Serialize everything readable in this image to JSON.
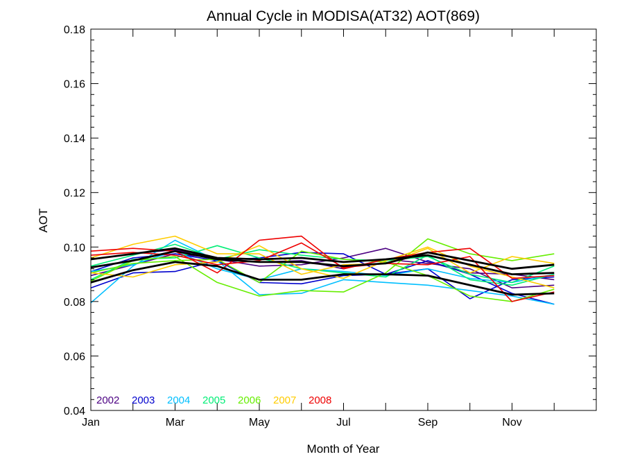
{
  "chart_data": {
    "type": "line",
    "title": "Annual Cycle in MODISA(AT32) AOT(869)",
    "xlabel": "Month of Year",
    "ylabel": "AOT",
    "xlim": [
      1,
      13
    ],
    "ylim": [
      0.04,
      0.18
    ],
    "x_ticks": [
      {
        "value": 1,
        "label": "Jan"
      },
      {
        "value": 3,
        "label": "Mar"
      },
      {
        "value": 5,
        "label": "May"
      },
      {
        "value": 7,
        "label": "Jul"
      },
      {
        "value": 9,
        "label": "Sep"
      },
      {
        "value": 11,
        "label": "Nov"
      }
    ],
    "y_ticks": [
      {
        "value": 0.04,
        "label": "0.04"
      },
      {
        "value": 0.06,
        "label": "0.06"
      },
      {
        "value": 0.08,
        "label": "0.08"
      },
      {
        "value": 0.1,
        "label": "0.10"
      },
      {
        "value": 0.12,
        "label": "0.12"
      },
      {
        "value": 0.14,
        "label": "0.14"
      },
      {
        "value": 0.16,
        "label": "0.16"
      },
      {
        "value": 0.18,
        "label": "0.18"
      }
    ],
    "grid": false,
    "legend_position": "bottom-left",
    "series": [
      {
        "name": "2002",
        "color": "#4b0082",
        "lines": [
          [
            0.0955,
            0.0975,
            0.099,
            0.0955,
            0.093,
            0.0935,
            0.096,
            0.0995,
            0.0945,
            0.0905,
            0.09,
            0.088
          ],
          [
            0.0895,
            0.0935,
            0.0975,
            0.096,
            0.0945,
            0.095,
            0.092,
            0.0955,
            0.094,
            0.092,
            0.085,
            0.086
          ]
        ]
      },
      {
        "name": "2003",
        "color": "#0000cd",
        "lines": [
          [
            0.085,
            0.0905,
            0.091,
            0.095,
            0.087,
            0.0865,
            0.0895,
            0.09,
            0.095,
            0.09,
            0.083,
            0.079
          ],
          [
            0.091,
            0.096,
            0.0975,
            0.095,
            0.096,
            0.098,
            0.0975,
            0.09,
            0.092,
            0.081,
            0.088,
            0.089
          ]
        ]
      },
      {
        "name": "2004",
        "color": "#00bfff",
        "lines": [
          [
            0.0795,
            0.093,
            0.1025,
            0.095,
            0.0825,
            0.083,
            0.088,
            0.087,
            0.086,
            0.084,
            0.082,
            0.079
          ],
          [
            0.091,
            0.0935,
            0.0985,
            0.092,
            0.088,
            0.092,
            0.091,
            0.0895,
            0.092,
            0.0885,
            0.087,
            0.09
          ]
        ]
      },
      {
        "name": "2005",
        "color": "#00ee76",
        "lines": [
          [
            0.088,
            0.0955,
            0.096,
            0.1005,
            0.096,
            0.092,
            0.0905,
            0.089,
            0.097,
            0.088,
            0.086,
            0.09
          ],
          [
            0.093,
            0.097,
            0.101,
            0.0955,
            0.099,
            0.097,
            0.0955,
            0.095,
            0.0965,
            0.09,
            0.087,
            0.093
          ]
        ]
      },
      {
        "name": "2006",
        "color": "#66ee00",
        "lines": [
          [
            0.0875,
            0.095,
            0.0965,
            0.087,
            0.082,
            0.084,
            0.0835,
            0.0905,
            0.103,
            0.0975,
            0.095,
            0.0975
          ],
          [
            0.0905,
            0.094,
            0.095,
            0.0955,
            0.087,
            0.0985,
            0.0955,
            0.0945,
            0.0895,
            0.082,
            0.08,
            0.0845
          ]
        ]
      },
      {
        "name": "2007",
        "color": "#ffcc00",
        "lines": [
          [
            0.096,
            0.101,
            0.104,
            0.0975,
            0.0975,
            0.09,
            0.0935,
            0.094,
            0.0995,
            0.0905,
            0.0965,
            0.094
          ],
          [
            0.0905,
            0.089,
            0.0935,
            0.0945,
            0.1005,
            0.092,
            0.0885,
            0.095,
            0.1,
            0.093,
            0.089,
            0.085
          ]
        ]
      },
      {
        "name": "2008",
        "color": "#ee0000",
        "lines": [
          [
            0.0985,
            0.0995,
            0.0985,
            0.0905,
            0.1025,
            0.104,
            0.092,
            0.0955,
            0.098,
            0.0995,
            0.0885,
            0.0895
          ],
          [
            0.097,
            0.098,
            0.097,
            0.0935,
            0.095,
            0.1015,
            0.0925,
            0.094,
            0.0935,
            0.0965,
            0.08,
            0.0835
          ]
        ]
      }
    ],
    "reference_lines": {
      "color": "#000000",
      "lines": [
        [
          0.0925,
          0.095,
          0.0985,
          0.0955,
          0.0945,
          0.0945,
          0.093,
          0.094,
          0.098,
          0.095,
          0.092,
          0.0935
        ],
        [
          0.0955,
          0.0975,
          0.0995,
          0.096,
          0.0955,
          0.096,
          0.0945,
          0.0955,
          0.097,
          0.0935,
          0.09,
          0.0905
        ],
        [
          0.087,
          0.0915,
          0.0945,
          0.093,
          0.088,
          0.088,
          0.09,
          0.09,
          0.0895,
          0.086,
          0.0825,
          0.083
        ]
      ]
    }
  }
}
